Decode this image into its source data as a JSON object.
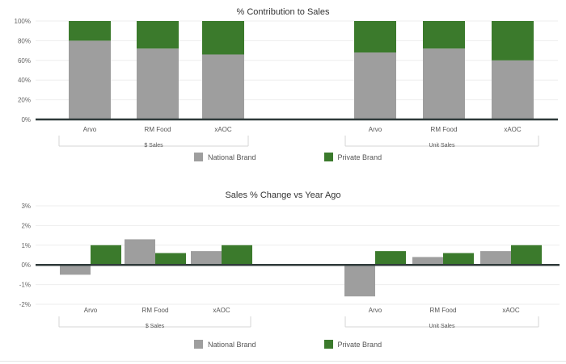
{
  "colors": {
    "national": "#9e9e9e",
    "private": "#3b7a2c",
    "axis": "#2f3a3a",
    "grid": "#eeeeee"
  },
  "legend": {
    "national_label": "National Brand",
    "private_label": "Private Brand"
  },
  "chart_data": [
    {
      "type": "bar",
      "stacked": true,
      "title": "% Contribution to Sales",
      "ylim": [
        0,
        100
      ],
      "yticks": [
        "0%",
        "20%",
        "40%",
        "60%",
        "80%",
        "100%"
      ],
      "grid": true,
      "legend_position": "bottom",
      "groups": [
        {
          "label": "$ Sales",
          "categories": [
            "Arvo",
            "RM Food",
            "xAOC"
          ]
        },
        {
          "label": "Unit Sales",
          "categories": [
            "Arvo",
            "RM Food",
            "xAOC"
          ]
        }
      ],
      "series": [
        {
          "name": "National Brand",
          "values": [
            80,
            72,
            66,
            68,
            72,
            60
          ]
        },
        {
          "name": "Private Brand",
          "values": [
            20,
            28,
            34,
            32,
            28,
            40
          ]
        }
      ]
    },
    {
      "type": "bar",
      "stacked": false,
      "title": "Sales % Change vs Year Ago",
      "ylim": [
        -2,
        3
      ],
      "yticks": [
        "-2%",
        "-1%",
        "0%",
        "1%",
        "2%",
        "3%"
      ],
      "grid": true,
      "legend_position": "bottom",
      "groups": [
        {
          "label": "$ Sales",
          "categories": [
            "Arvo",
            "RM Food",
            "xAOC"
          ]
        },
        {
          "label": "Unit Sales",
          "categories": [
            "Arvo",
            "RM Food",
            "xAOC"
          ]
        }
      ],
      "series": [
        {
          "name": "National Brand",
          "values": [
            -0.5,
            1.3,
            0.7,
            -1.6,
            0.4,
            0.7
          ]
        },
        {
          "name": "Private Brand",
          "values": [
            1.0,
            0.6,
            1.0,
            0.7,
            0.6,
            1.0
          ]
        }
      ]
    }
  ]
}
